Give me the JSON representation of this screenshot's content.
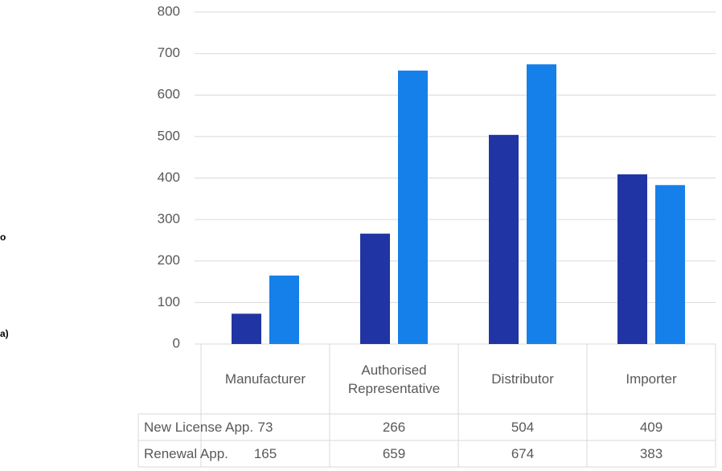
{
  "chart_data": {
    "type": "bar",
    "categories": [
      "Manufacturer",
      "Authorised Representative",
      "Distributor",
      "Importer"
    ],
    "series": [
      {
        "name": "New License App.",
        "color": "#2035a3",
        "values": [
          73,
          266,
          504,
          409
        ]
      },
      {
        "name": "Renewal App.",
        "color": "#1580ea",
        "values": [
          165,
          659,
          674,
          383
        ]
      }
    ],
    "ylim": [
      0,
      800
    ],
    "yticks": [
      0,
      100,
      200,
      300,
      400,
      500,
      600,
      700,
      800
    ],
    "grid": true,
    "annotations": [
      "o",
      "a)"
    ]
  }
}
